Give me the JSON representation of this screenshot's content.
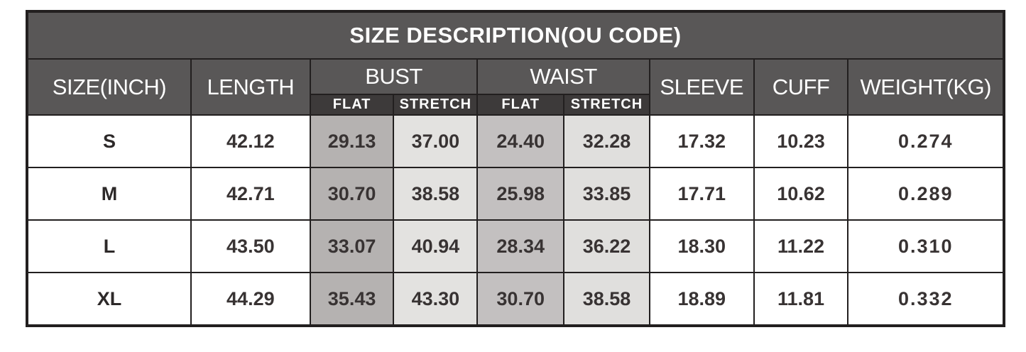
{
  "title": "SIZE DESCRIPTION(OU CODE)",
  "header": {
    "size": "SIZE(INCH)",
    "length": "LENGTH",
    "bust": "BUST",
    "waist": "WAIST",
    "sleeve": "SLEEVE",
    "cuff": "CUFF",
    "weight": "WEIGHT(KG)",
    "flat": "FLAT",
    "stretch": "STRETCH"
  },
  "rows": [
    {
      "size": "S",
      "length": "42.12",
      "bust_flat": "29.13",
      "bust_stretch": "37.00",
      "waist_flat": "24.40",
      "waist_stretch": "32.28",
      "sleeve": "17.32",
      "cuff": "10.23",
      "weight": "0.274"
    },
    {
      "size": "M",
      "length": "42.71",
      "bust_flat": "30.70",
      "bust_stretch": "38.58",
      "waist_flat": "25.98",
      "waist_stretch": "33.85",
      "sleeve": "17.71",
      "cuff": "10.62",
      "weight": "0.289"
    },
    {
      "size": "L",
      "length": "43.50",
      "bust_flat": "33.07",
      "bust_stretch": "40.94",
      "waist_flat": "28.34",
      "waist_stretch": "36.22",
      "sleeve": "18.30",
      "cuff": "11.22",
      "weight": "0.310"
    },
    {
      "size": "XL",
      "length": "44.29",
      "bust_flat": "35.43",
      "bust_stretch": "43.30",
      "waist_flat": "30.70",
      "waist_stretch": "38.58",
      "sleeve": "18.89",
      "cuff": "11.81",
      "weight": "0.332"
    }
  ],
  "colors": {
    "header_bg": "#595757",
    "subheader_bg": "#3d3a3a",
    "bust_flat_bg": "#b5b2b1",
    "bust_stretch_bg": "#e3e2e0",
    "waist_flat_bg": "#c3c0c0",
    "waist_stretch_bg": "#e0dfdd",
    "border": "#221f1f",
    "title_text": "#ffffff",
    "data_text": "#383333"
  },
  "chart_data": {
    "type": "table",
    "title": "SIZE DESCRIPTION(OU CODE)",
    "columns": [
      "SIZE(INCH)",
      "LENGTH",
      "BUST FLAT",
      "BUST STRETCH",
      "WAIST FLAT",
      "WAIST STRETCH",
      "SLEEVE",
      "CUFF",
      "WEIGHT(KG)"
    ],
    "rows": [
      [
        "S",
        "42.12",
        "29.13",
        "37.00",
        "24.40",
        "32.28",
        "17.32",
        "10.23",
        "0.274"
      ],
      [
        "M",
        "42.71",
        "30.70",
        "38.58",
        "25.98",
        "33.85",
        "17.71",
        "10.62",
        "0.289"
      ],
      [
        "L",
        "43.50",
        "33.07",
        "40.94",
        "28.34",
        "36.22",
        "18.30",
        "11.22",
        "0.310"
      ],
      [
        "XL",
        "44.29",
        "35.43",
        "43.30",
        "30.70",
        "38.58",
        "18.89",
        "11.81",
        "0.332"
      ]
    ]
  }
}
